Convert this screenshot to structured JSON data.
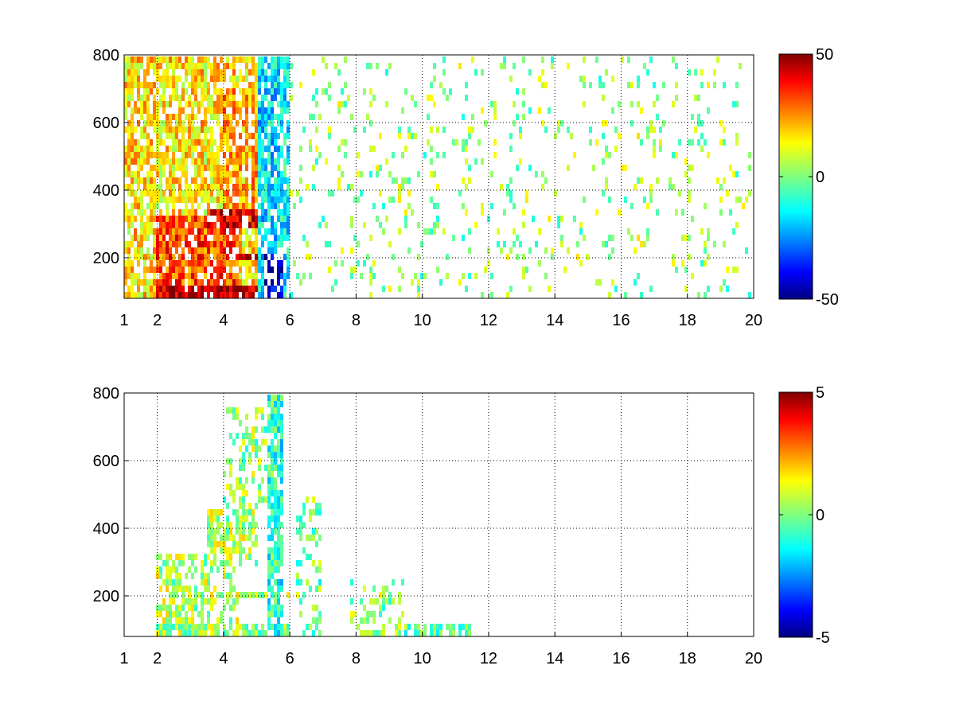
{
  "chart_data": [
    {
      "type": "heatmap",
      "title": "",
      "xlabel": "",
      "ylabel": "",
      "xlim": [
        1,
        20
      ],
      "ylim": [
        80,
        800
      ],
      "x_ticks": [
        1,
        2,
        4,
        6,
        8,
        10,
        12,
        14,
        16,
        18,
        20
      ],
      "x_tick_labels": [
        "1",
        "2",
        "4",
        "6",
        "8",
        "10",
        "12",
        "14",
        "16",
        "18",
        "20"
      ],
      "y_ticks": [
        200,
        400,
        600,
        800
      ],
      "y_tick_labels": [
        "200",
        "400",
        "600",
        "800"
      ],
      "grid": true,
      "colormap": "jet",
      "clim": [
        -50,
        50
      ],
      "colorbar_ticks": [
        50,
        0,
        -50
      ],
      "colorbar_tick_labels": [
        "50",
        "0",
        "-50"
      ],
      "regions": [
        {
          "x": [
            1,
            6
          ],
          "y": [
            80,
            800
          ],
          "level": 15,
          "density": 0.75
        },
        {
          "x": [
            2,
            6
          ],
          "y": [
            80,
            120
          ],
          "level": 45,
          "density": 0.9
        },
        {
          "x": [
            2,
            6
          ],
          "y": [
            190,
            220
          ],
          "level": 45,
          "density": 0.9
        },
        {
          "x": [
            2,
            4.5
          ],
          "y": [
            120,
            330
          ],
          "level": 30,
          "density": 0.85
        },
        {
          "x": [
            3.5,
            6
          ],
          "y": [
            280,
            350
          ],
          "level": 38,
          "density": 0.85
        },
        {
          "x": [
            4,
            6
          ],
          "y": [
            350,
            700
          ],
          "level": 20,
          "density": 0.8
        },
        {
          "x": [
            5,
            6
          ],
          "y": [
            80,
            800
          ],
          "level": -15,
          "density": 0.8
        },
        {
          "x": [
            5.2,
            5.8
          ],
          "y": [
            80,
            220
          ],
          "level": -40,
          "density": 0.6
        },
        {
          "x": [
            6,
            7.5
          ],
          "y": [
            80,
            800
          ],
          "level": -10,
          "density": 0.3
        },
        {
          "x": [
            7.5,
            10
          ],
          "y": [
            80,
            260
          ],
          "level": -20,
          "density": 0.35
        },
        {
          "x": [
            6,
            20
          ],
          "y": [
            80,
            800
          ],
          "level": 2,
          "density": 0.1
        }
      ]
    },
    {
      "type": "heatmap",
      "title": "",
      "xlabel": "",
      "ylabel": "",
      "xlim": [
        1,
        20
      ],
      "ylim": [
        80,
        800
      ],
      "x_ticks": [
        1,
        2,
        4,
        6,
        8,
        10,
        12,
        14,
        16,
        18,
        20
      ],
      "x_tick_labels": [
        "1",
        "2",
        "4",
        "6",
        "8",
        "10",
        "12",
        "14",
        "16",
        "18",
        "20"
      ],
      "y_ticks": [
        200,
        400,
        600,
        800
      ],
      "y_tick_labels": [
        "200",
        "400",
        "600",
        "800"
      ],
      "grid": true,
      "colormap": "jet",
      "clim": [
        -5,
        5
      ],
      "colorbar_ticks": [
        5,
        0,
        -5
      ],
      "colorbar_tick_labels": [
        "5",
        "0",
        "-5"
      ],
      "regions": [
        {
          "x": [
            2,
            6
          ],
          "y": [
            80,
            120
          ],
          "level": 0.3,
          "density": 0.85
        },
        {
          "x": [
            2,
            6
          ],
          "y": [
            190,
            220
          ],
          "level": 0.3,
          "density": 0.8
        },
        {
          "x": [
            2,
            4.5
          ],
          "y": [
            120,
            330
          ],
          "level": 0.5,
          "density": 0.5
        },
        {
          "x": [
            3.5,
            5
          ],
          "y": [
            280,
            450
          ],
          "level": 0.6,
          "density": 0.6
        },
        {
          "x": [
            4,
            5.5
          ],
          "y": [
            450,
            750
          ],
          "level": 0.2,
          "density": 0.35
        },
        {
          "x": [
            5.3,
            5.8
          ],
          "y": [
            80,
            800
          ],
          "level": -0.8,
          "density": 0.8
        },
        {
          "x": [
            6.2,
            7
          ],
          "y": [
            80,
            500
          ],
          "level": 0,
          "density": 0.3
        },
        {
          "x": [
            7.8,
            9.5
          ],
          "y": [
            80,
            250
          ],
          "level": 0.2,
          "density": 0.35
        },
        {
          "x": [
            9.5,
            11.5
          ],
          "y": [
            80,
            110
          ],
          "level": -0.5,
          "density": 0.6
        }
      ]
    }
  ]
}
